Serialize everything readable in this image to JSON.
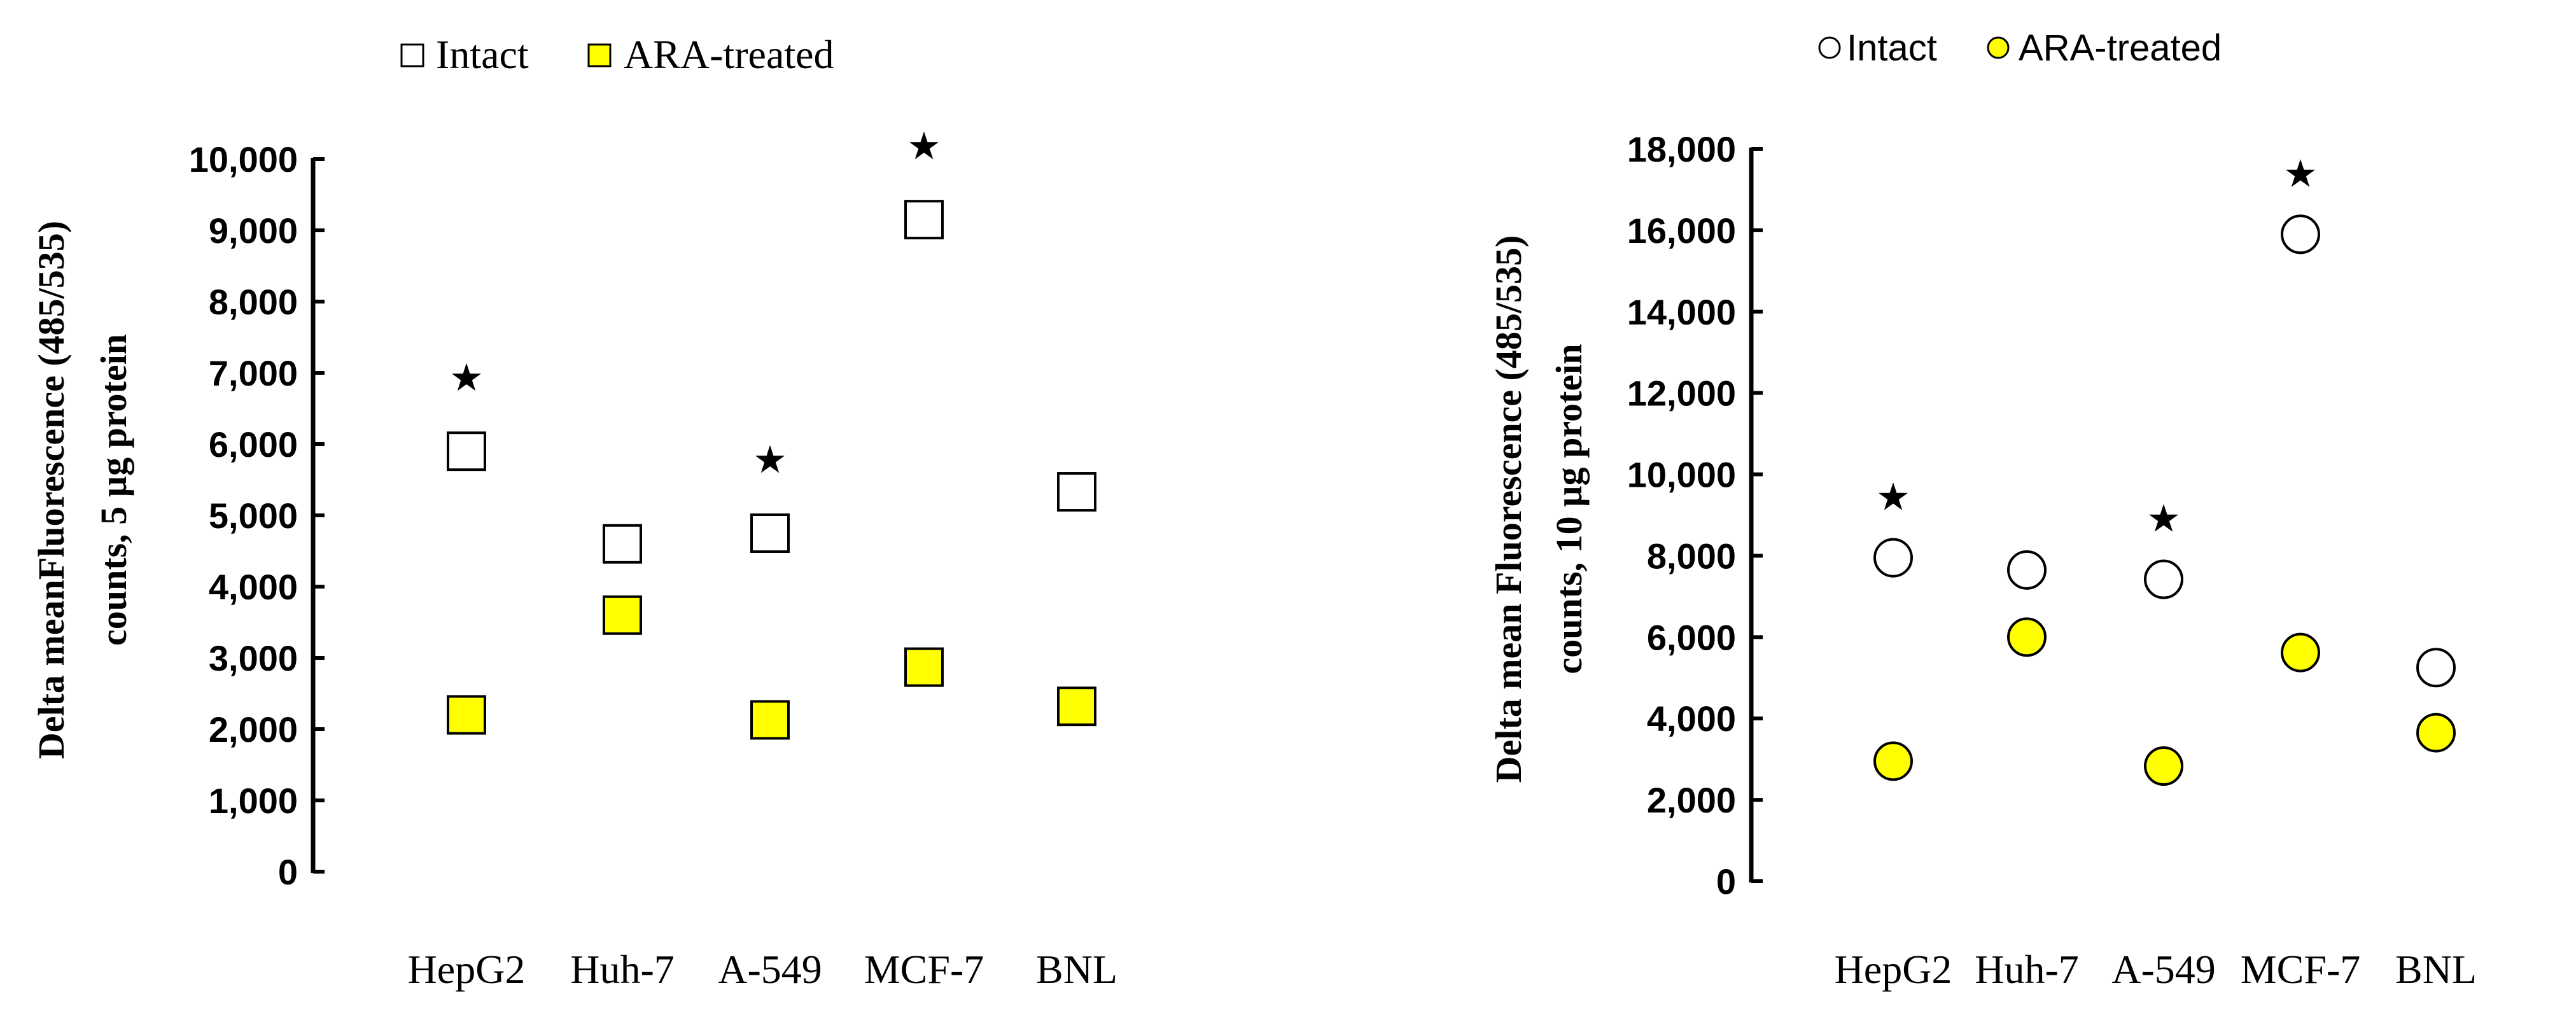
{
  "chart_data": [
    {
      "type": "scatter",
      "marker": "square",
      "categories": [
        "HepG2",
        "Huh-7",
        "A-549",
        "MCF-7",
        "BNL"
      ],
      "ylabel_lines": [
        "Delta meanFluorescence (485/535)",
        "counts, 5 µg protein"
      ],
      "ylim": [
        0,
        10000
      ],
      "yticks": [
        "0",
        "1,000",
        "2,000",
        "3,000",
        "4,000",
        "5,000",
        "6,000",
        "7,000",
        "8,000",
        "9,000",
        "10,000"
      ],
      "legend_position": "top",
      "series": [
        {
          "name": "Intact",
          "color": "#ffffff",
          "values": [
            5900,
            4600,
            4750,
            9150,
            5330
          ]
        },
        {
          "name": "ARA-treated",
          "color": "#ffff00",
          "values": [
            2200,
            3600,
            2130,
            2870,
            2320
          ]
        }
      ],
      "significance_marker": "★",
      "significance_above_intact": [
        true,
        false,
        true,
        true,
        false
      ]
    },
    {
      "type": "scatter",
      "marker": "circle",
      "categories": [
        "HepG2",
        "Huh-7",
        "A-549",
        "MCF-7",
        "BNL"
      ],
      "ylabel_lines": [
        "Delta mean Fluorescence (485/535)",
        "counts, 10 µg protein"
      ],
      "ylim": [
        0,
        18000
      ],
      "yticks": [
        "0",
        "2,000",
        "4,000",
        "6,000",
        "8,000",
        "10,000",
        "12,000",
        "14,000",
        "16,000",
        "18,000"
      ],
      "legend_position": "top",
      "series": [
        {
          "name": "Intact",
          "color": "#ffffff",
          "values": [
            7950,
            7650,
            7420,
            15900,
            5250
          ]
        },
        {
          "name": "ARA-treated",
          "color": "#ffff00",
          "values": [
            2950,
            6000,
            2830,
            5620,
            3650
          ]
        }
      ],
      "significance_marker": "★",
      "significance_above_intact": [
        true,
        false,
        true,
        true,
        false
      ]
    }
  ]
}
